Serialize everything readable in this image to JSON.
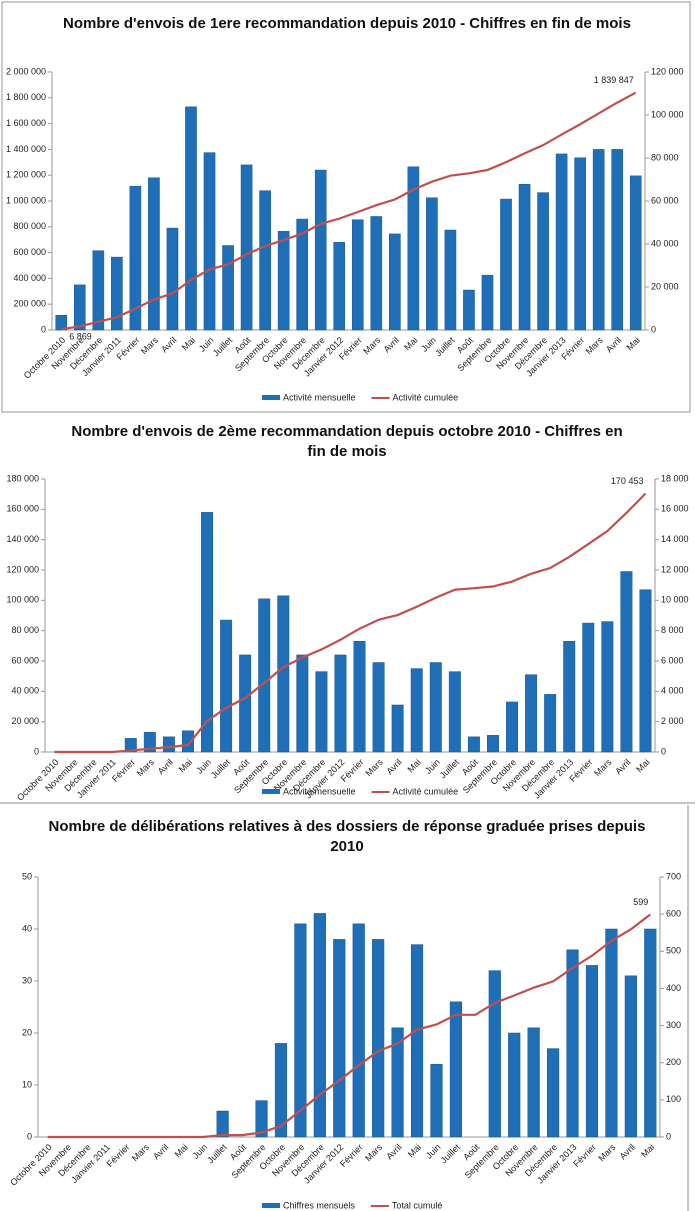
{
  "chart_data": [
    {
      "type": "combo",
      "title": "Nombre d'envois de 1ere recommandation depuis 2010 - Chiffres en fin de mois",
      "categories": [
        "Octobre 2010",
        "Novembre",
        "Décembre",
        "Janvier 2011",
        "Février",
        "Mars",
        "Avril",
        "Mai",
        "Juin",
        "Juillet",
        "Août",
        "Septembre",
        "Octobre",
        "Novembre",
        "Décembre",
        "Janvier 2012",
        "Février",
        "Mars",
        "Avril",
        "Mai",
        "Juin",
        "Juillet",
        "Août",
        "Septembre",
        "Octobre",
        "Novembre",
        "Décembre",
        "Janvier 2013",
        "Février",
        "Mars",
        "Avril",
        "Mai"
      ],
      "series": [
        {
          "name": "Activité mensuelle",
          "type": "bar",
          "axis": "y2",
          "color": "#1f6fb8",
          "values": [
            6869,
            21000,
            36900,
            33900,
            66900,
            70800,
            47400,
            103800,
            82500,
            39300,
            76800,
            64800,
            45900,
            51600,
            74400,
            40800,
            51300,
            52800,
            44700,
            75900,
            61500,
            46500,
            18600,
            25500,
            60900,
            67800,
            63900,
            81900,
            80100,
            84000,
            84000,
            71700
          ]
        },
        {
          "name": "Activité cumulée",
          "type": "line",
          "axis": "y",
          "color": "#c0504d",
          "values": [
            6869,
            27600,
            64500,
            98400,
            165300,
            236100,
            283500,
            387300,
            469800,
            509100,
            585900,
            650700,
            696600,
            748200,
            822600,
            863400,
            914700,
            967500,
            1012200,
            1088100,
            1149600,
            1196100,
            1214700,
            1240200,
            1301100,
            1368900,
            1432800,
            1514700,
            1594800,
            1678800,
            1762800,
            1839847
          ],
          "value_labels": [
            "6 869",
            null,
            null,
            null,
            null,
            null,
            null,
            null,
            null,
            null,
            null,
            null,
            null,
            null,
            null,
            null,
            null,
            null,
            null,
            null,
            null,
            null,
            null,
            null,
            null,
            null,
            null,
            null,
            null,
            null,
            null,
            "1 839 847"
          ]
        }
      ],
      "ylim": [
        0,
        2000000
      ],
      "yticks": [
        0,
        {
          "value": 200000,
          "label": "200 000"
        },
        {
          "value": 400000,
          "label": "400 000"
        },
        {
          "value": 600000,
          "label": "600 000"
        },
        {
          "value": 800000,
          "label": "800 000"
        },
        {
          "value": 1000000,
          "label": "1 000 000"
        },
        {
          "value": 1200000,
          "label": "1 200 000"
        },
        {
          "value": 1400000,
          "label": "1 400 000"
        },
        {
          "value": 1600000,
          "label": "1 600 000"
        },
        {
          "value": 1800000,
          "label": "1 800 000"
        },
        {
          "value": 2000000,
          "label": "2 000 000"
        }
      ],
      "y2lim": [
        0,
        120000
      ],
      "y2ticks": [
        0,
        {
          "value": 20000,
          "label": "20 000"
        },
        {
          "value": 40000,
          "label": "40 000"
        },
        {
          "value": 60000,
          "label": "60 000"
        },
        {
          "value": 80000,
          "label": "80 000"
        },
        {
          "value": 100000,
          "label": "100 000"
        },
        {
          "value": 120000,
          "label": "120 000"
        }
      ],
      "y_color": "#c0504d",
      "y2_color": "#2e75b6",
      "grid": false
    },
    {
      "type": "combo",
      "title": "Nombre d'envois de 2ème recommandation depuis octobre 2010 - Chiffres en fin de mois",
      "categories": [
        "Octobre 2010",
        "Novembre",
        "Décembre",
        "Janvier 2011",
        "Février",
        "Mars",
        "Avril",
        "Mai",
        "Juin",
        "Juillet",
        "Août",
        "Septembre",
        "Octobre",
        "Novembre",
        "Décembre",
        "Janvier 2012",
        "Février",
        "Mars",
        "Avril",
        "Mai",
        "Juin",
        "Juillet",
        "Août",
        "Septembre",
        "Octobre",
        "Novembre",
        "Décembre",
        "Janvier 2013",
        "Février",
        "Mars",
        "Avril",
        "Mai"
      ],
      "series": [
        {
          "name": "Activité mensuelle",
          "type": "bar",
          "axis": "y2",
          "color": "#1f6fb8",
          "values": [
            0,
            0,
            0,
            0,
            900,
            1300,
            1000,
            1400,
            15800,
            8700,
            6400,
            10100,
            10300,
            6400,
            5300,
            6400,
            7300,
            5900,
            3100,
            5500,
            5900,
            5300,
            1000,
            1100,
            3300,
            5100,
            3800,
            7300,
            8500,
            8600,
            11900,
            10700
          ]
        },
        {
          "name": "Activité cumulée",
          "type": "line",
          "axis": "y",
          "color": "#c0504d",
          "values": [
            0,
            0,
            0,
            0,
            900,
            2200,
            3200,
            4600,
            20400,
            29100,
            35500,
            45600,
            55900,
            62300,
            67600,
            74000,
            81300,
            87200,
            90300,
            95800,
            101700,
            107000,
            108000,
            109100,
            112400,
            117500,
            121300,
            128600,
            137100,
            145700,
            157600,
            170453
          ],
          "value_labels": [
            null,
            null,
            null,
            null,
            null,
            null,
            null,
            null,
            null,
            null,
            null,
            null,
            null,
            null,
            null,
            null,
            null,
            null,
            null,
            null,
            null,
            null,
            null,
            null,
            null,
            null,
            null,
            null,
            null,
            null,
            null,
            "170 453"
          ]
        }
      ],
      "ylim": [
        0,
        180000
      ],
      "yticks": [
        0,
        {
          "value": 20000,
          "label": "20 000"
        },
        {
          "value": 40000,
          "label": "40 000"
        },
        {
          "value": 60000,
          "label": "60 000"
        },
        {
          "value": 80000,
          "label": "80 000"
        },
        {
          "value": 100000,
          "label": "100 000"
        },
        {
          "value": 120000,
          "label": "120 000"
        },
        {
          "value": 140000,
          "label": "140 000"
        },
        {
          "value": 160000,
          "label": "160 000"
        },
        {
          "value": 180000,
          "label": "180 000"
        }
      ],
      "y2lim": [
        0,
        18000
      ],
      "y2ticks": [
        0,
        {
          "value": 2000,
          "label": "2 000"
        },
        {
          "value": 4000,
          "label": "4 000"
        },
        {
          "value": 6000,
          "label": "6 000"
        },
        {
          "value": 8000,
          "label": "8 000"
        },
        {
          "value": 10000,
          "label": "10 000"
        },
        {
          "value": 12000,
          "label": "12 000"
        },
        {
          "value": 14000,
          "label": "14 000"
        },
        {
          "value": 16000,
          "label": "16 000"
        },
        {
          "value": 18000,
          "label": "18 000"
        }
      ],
      "y_color": "#333333",
      "y2_color": "#2e75b6",
      "grid": false
    },
    {
      "type": "combo",
      "title": "Nombre de délibérations relatives à des dossiers de réponse graduée prises depuis 2010",
      "categories": [
        "Octobre 2010",
        "Novembre",
        "Décembre",
        "Janvier 2011",
        "Février",
        "Mars",
        "Avril",
        "Mai",
        "Juin",
        "Juillet",
        "Août",
        "Septembre",
        "Octobre",
        "Novembre",
        "Décembre",
        "Janvier 2012",
        "Février",
        "Mars",
        "Avril",
        "Mai",
        "Juin",
        "Juillet",
        "Août",
        "Septembre",
        "Octobre",
        "Novembre",
        "Décembre",
        "Janvier 2013",
        "Février",
        "Mars",
        "Avril",
        "Mai"
      ],
      "series": [
        {
          "name": "Chiffres mensuels",
          "type": "bar",
          "axis": "y",
          "color": "#1f6fb8",
          "values": [
            0,
            0,
            0,
            0,
            0,
            0,
            0,
            0,
            0,
            5,
            0,
            7,
            18,
            41,
            43,
            38,
            41,
            38,
            21,
            37,
            14,
            26,
            0,
            32,
            20,
            21,
            17,
            36,
            33,
            40,
            31,
            40
          ]
        },
        {
          "name": "Total cumulé",
          "type": "line",
          "axis": "y2",
          "color": "#c0504d",
          "values": [
            0,
            0,
            0,
            0,
            0,
            0,
            0,
            0,
            0,
            5,
            5,
            12,
            30,
            71,
            114,
            152,
            193,
            231,
            252,
            289,
            303,
            329,
            329,
            361,
            381,
            402,
            419,
            455,
            488,
            528,
            559,
            599
          ],
          "value_labels": [
            null,
            null,
            null,
            null,
            null,
            null,
            null,
            null,
            null,
            null,
            null,
            null,
            null,
            null,
            null,
            null,
            null,
            null,
            null,
            null,
            null,
            null,
            null,
            null,
            null,
            null,
            null,
            null,
            null,
            null,
            null,
            "599"
          ]
        }
      ],
      "ylim": [
        0,
        50
      ],
      "yticks": [
        0,
        10,
        20,
        30,
        40,
        50
      ],
      "y2lim": [
        0,
        700
      ],
      "y2ticks": [
        0,
        100,
        200,
        300,
        400,
        500,
        600,
        700
      ],
      "y_color": "#2e75b6",
      "y2_color": "#c0504d",
      "grid": false
    }
  ]
}
